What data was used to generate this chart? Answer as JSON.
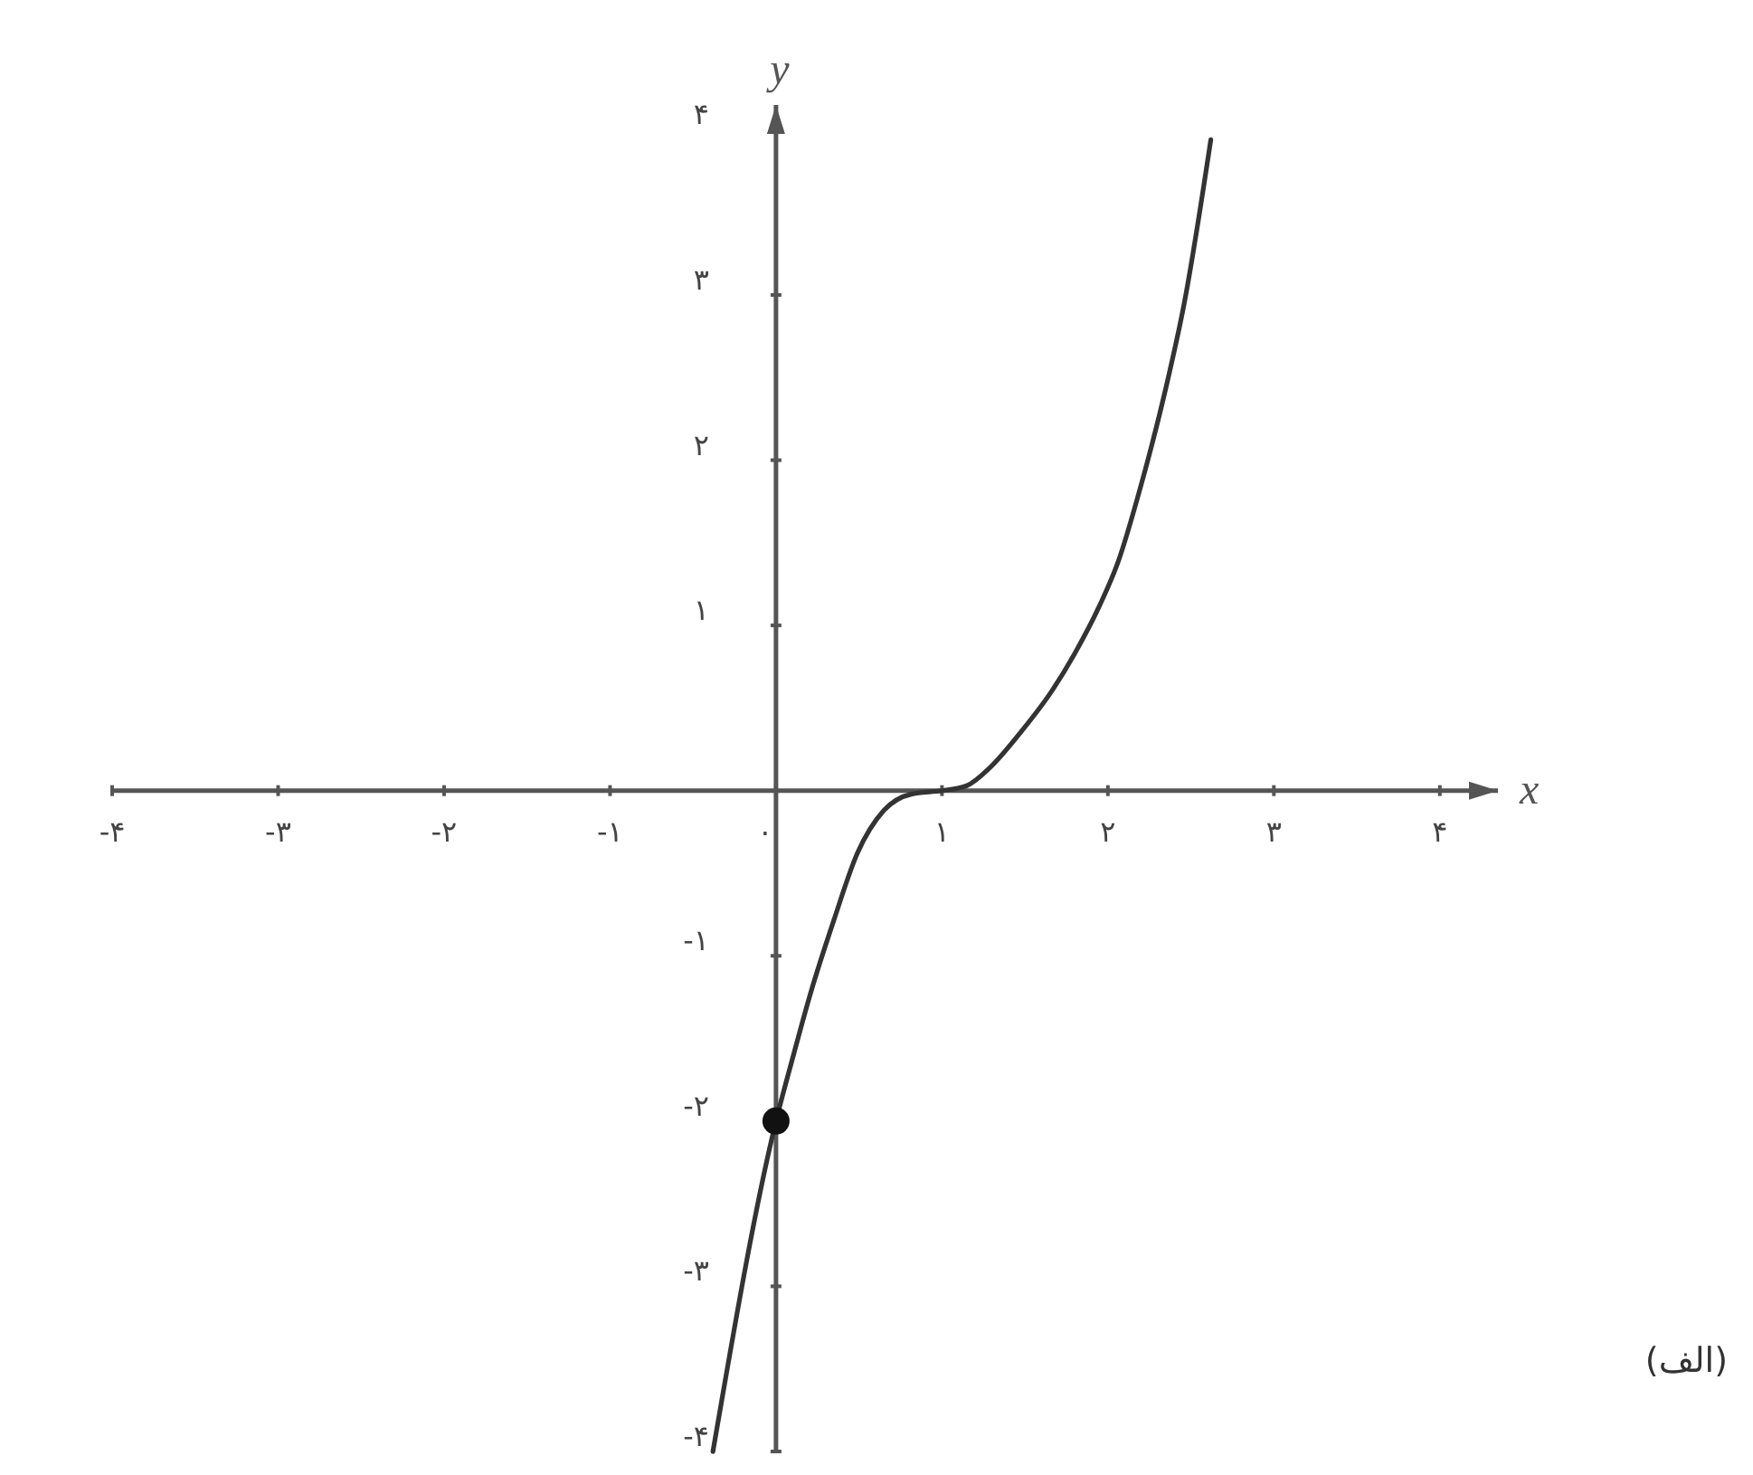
{
  "chart_data": {
    "type": "line",
    "xlabel": "x",
    "ylabel": "y",
    "annotations": [
      "(الف)"
    ],
    "xlim": [
      -4,
      4.35
    ],
    "ylim": [
      -4,
      4.15
    ],
    "xticks": [
      {
        "value": -4,
        "label": "-۴"
      },
      {
        "value": -3,
        "label": "-۳"
      },
      {
        "value": -2,
        "label": "-۲"
      },
      {
        "value": -1,
        "label": "-۱"
      },
      {
        "value": 0,
        "label": "۰"
      },
      {
        "value": 1,
        "label": "۱"
      },
      {
        "value": 2,
        "label": "۲"
      },
      {
        "value": 3,
        "label": "۳"
      },
      {
        "value": 4,
        "label": "۴"
      }
    ],
    "yticks": [
      {
        "value": -4,
        "label": "-۴"
      },
      {
        "value": -3,
        "label": "-۳"
      },
      {
        "value": -2,
        "label": "-۲"
      },
      {
        "value": -1,
        "label": "-۱"
      },
      {
        "value": 1,
        "label": "۱"
      },
      {
        "value": 2,
        "label": "۲"
      },
      {
        "value": 3,
        "label": "۳"
      },
      {
        "value": 4,
        "label": "۴"
      }
    ],
    "series": [
      {
        "color": "#333333",
        "x": [
          -0.38,
          0,
          0.1,
          0.21,
          0.35,
          0.49,
          0.65,
          0.82,
          1.0,
          1.15,
          1.29,
          1.48,
          1.66,
          1.8,
          1.95,
          2.06,
          2.2,
          2.35,
          2.46,
          2.62
        ],
        "values": [
          -4,
          -2,
          -1.62,
          -1.22,
          -0.78,
          -0.38,
          -0.12,
          -0.02,
          0,
          0.03,
          0.14,
          0.36,
          0.6,
          0.83,
          1.12,
          1.38,
          1.85,
          2.44,
          2.95,
          3.94
        ]
      },
      {
        "type": "scatter",
        "color": "#111111",
        "marker": "circle",
        "x": [
          0
        ],
        "values": [
          -2
        ]
      }
    ]
  }
}
